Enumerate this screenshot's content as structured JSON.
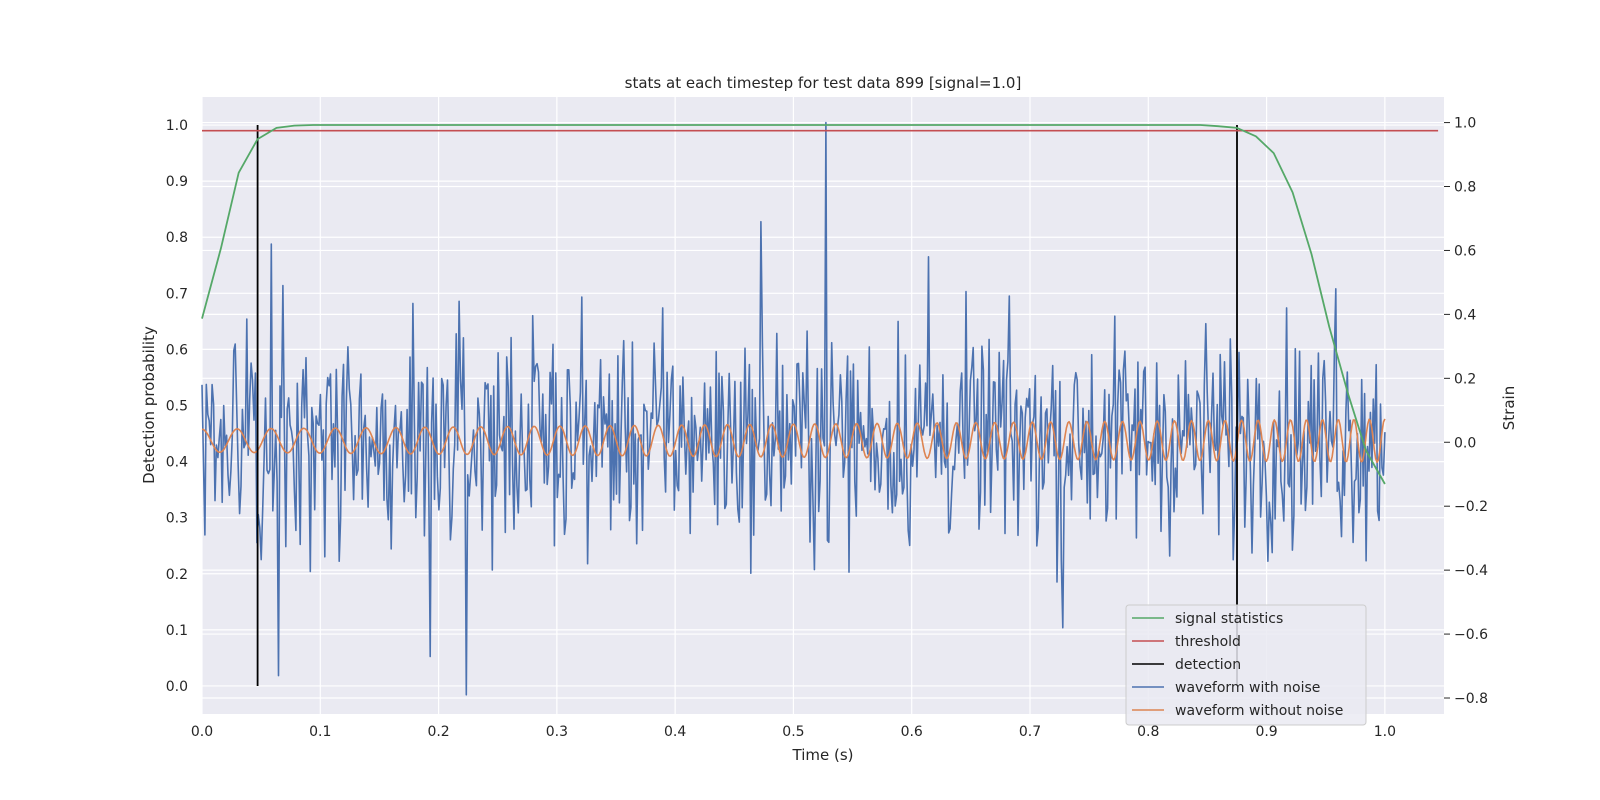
{
  "chart_data": {
    "type": "line",
    "title": "stats at each timestep for test data 899 [signal=1.0]",
    "xlabel": "Time (s)",
    "ylabel": "Detection probability",
    "y2label": "Strain",
    "xlim": [
      0.0,
      1.05
    ],
    "ylim": [
      -0.05,
      1.05
    ],
    "y2lim": [
      -0.85,
      1.08
    ],
    "grid": true,
    "legend_position": "lower-right",
    "xticks": [
      "0.0",
      "0.1",
      "0.2",
      "0.3",
      "0.4",
      "0.5",
      "0.6",
      "0.7",
      "0.8",
      "0.9",
      "1.0"
    ],
    "yticks": [
      "0.0",
      "0.1",
      "0.2",
      "0.3",
      "0.4",
      "0.5",
      "0.6",
      "0.7",
      "0.8",
      "0.9",
      "1.0"
    ],
    "y2ticks": [
      "−0.8",
      "−0.6",
      "−0.4",
      "−0.2",
      "0.0",
      "0.2",
      "0.4",
      "0.6",
      "0.8",
      "1.0"
    ],
    "series": [
      {
        "name": "signal statistics",
        "axis": "left",
        "color": "#55a868",
        "x": [
          0.0,
          0.016,
          0.031,
          0.047,
          0.063,
          0.078,
          0.094,
          0.5,
          0.844,
          0.859,
          0.875,
          0.891,
          0.906,
          0.922,
          0.938,
          0.953,
          0.969,
          0.984,
          1.0
        ],
        "y": [
          0.655,
          0.78,
          0.915,
          0.975,
          0.995,
          0.999,
          1.0,
          1.0,
          1.0,
          0.998,
          0.995,
          0.98,
          0.95,
          0.88,
          0.77,
          0.64,
          0.52,
          0.42,
          0.36
        ]
      },
      {
        "name": "threshold",
        "axis": "left",
        "color": "#c44e52",
        "x": [
          0.0,
          1.045
        ],
        "y": [
          0.99,
          0.99
        ]
      },
      {
        "name": "detection",
        "axis": "left",
        "color": "#000000",
        "segments": [
          {
            "x": 0.047,
            "y": [
              0.0,
              1.0
            ]
          },
          {
            "x": 0.875,
            "y": [
              0.0,
              1.0
            ]
          }
        ]
      },
      {
        "name": "waveform with noise",
        "axis": "right",
        "color": "#4c72b0",
        "x_range": [
          0.0,
          1.0
        ],
        "samples": 820,
        "amplitude_range": [
          -0.79,
          1.0
        ]
      },
      {
        "name": "waveform without noise",
        "axis": "right",
        "color": "#dd8452",
        "x_range": [
          0.0,
          1.0
        ],
        "amplitude_range": [
          -0.07,
          0.08
        ]
      }
    ]
  }
}
